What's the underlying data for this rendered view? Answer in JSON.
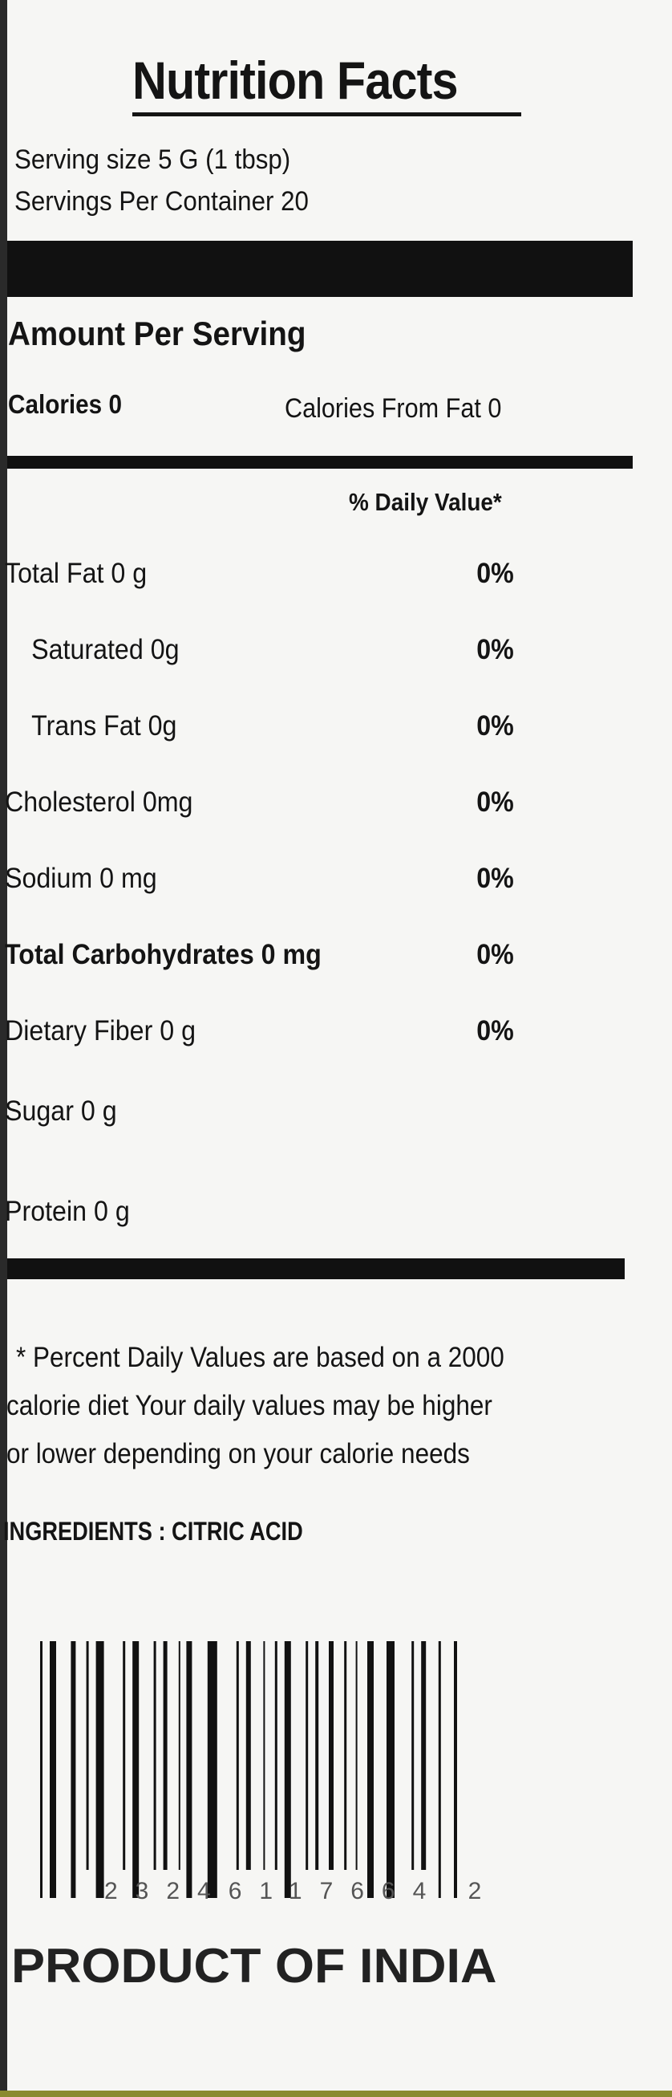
{
  "label": {
    "title": "Nutrition Facts",
    "serving_size": "Serving size 5 G (1 tbsp)",
    "servings_per_container": "Servings Per Container 20",
    "amount_per_serving": "Amount Per Serving",
    "calories": "Calories 0",
    "calories_from_fat": "Calories From Fat 0",
    "daily_value_header": "% Daily Value*",
    "nutrients": [
      {
        "name": "Total Fat 0 g",
        "pct": "0%",
        "indent": false,
        "bold": false
      },
      {
        "name": "Saturated 0g",
        "pct": "0%",
        "indent": true,
        "bold": false
      },
      {
        "name": "Trans Fat 0g",
        "pct": "0%",
        "indent": true,
        "bold": false
      },
      {
        "name": "Cholesterol 0mg",
        "pct": "0%",
        "indent": false,
        "bold": false
      },
      {
        "name": "Sodium 0 mg",
        "pct": "0%",
        "indent": false,
        "bold": false
      },
      {
        "name": "Total Carbohydrates 0 mg",
        "pct": "0%",
        "indent": false,
        "bold": true
      },
      {
        "name": "Dietary Fiber 0 g",
        "pct": "0%",
        "indent": false,
        "bold": false
      },
      {
        "name": "Sugar 0 g",
        "pct": "",
        "indent": false,
        "bold": false
      },
      {
        "name": "Protein 0 g",
        "pct": "",
        "indent": false,
        "bold": false
      }
    ],
    "footnote": [
      "* Percent Daily Values are based on a 2000",
      "calorie diet  Your daily values may be higher",
      "or lower depending on your calorie needs"
    ],
    "ingredients": "INGREDIENTS : CITRIC ACID",
    "barcode_digits": "23246117664 2",
    "origin": "PRODUCT OF INDIA"
  }
}
